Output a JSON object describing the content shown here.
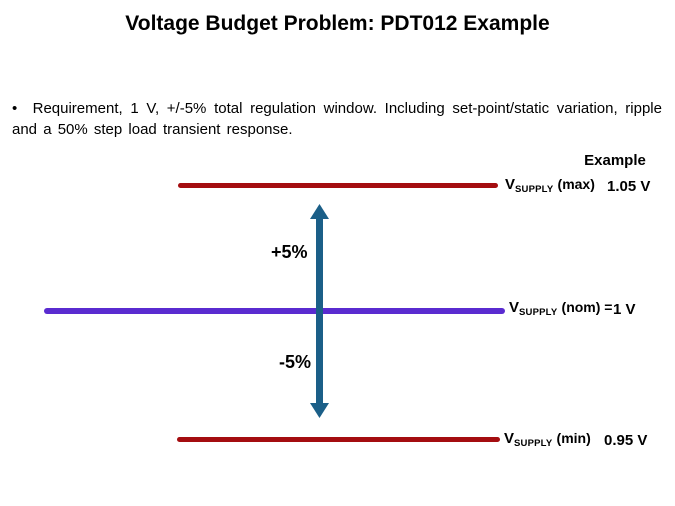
{
  "slide": {
    "title": "Voltage Budget Problem: PDT012 Example",
    "bullet": {
      "marker": "•",
      "text": "Requirement,  1 V, +/-5% total regulation window. Including set-point/static variation, ripple and a 50% step load transient response."
    }
  },
  "diagram": {
    "example_header": "Example",
    "levels": [
      {
        "name": "max",
        "v": "V",
        "sub": "SUPPLY",
        "paren": "(max)",
        "value": "1.05 V"
      },
      {
        "name": "nom",
        "v": "V",
        "sub": "SUPPLY",
        "paren": "(nom) =",
        "value": "1 V"
      },
      {
        "name": "min",
        "v": "V",
        "sub": "SUPPLY",
        "paren": "(min)",
        "value": "0.95 V"
      }
    ],
    "arrow": {
      "up_label": "+5%",
      "down_label": "-5%"
    },
    "colors": {
      "line_max": "#A40D10",
      "line_nom": "#5A2BD0",
      "line_min": "#A40D10",
      "arrow": "#1B5F88",
      "text": "#000000",
      "background": "#FFFFFF"
    }
  }
}
